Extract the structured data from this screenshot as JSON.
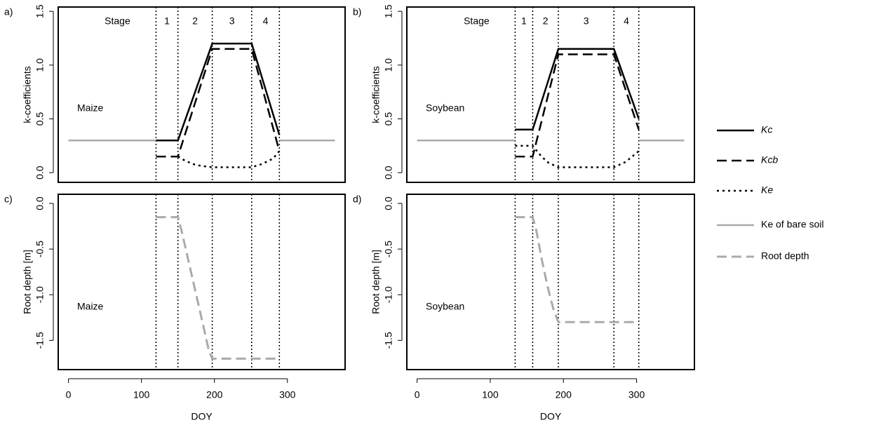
{
  "chart_data": [
    {
      "type": "line",
      "panel": "a)",
      "crop": "Maize",
      "ylabel": "k-coefficients",
      "xlim": [
        -14,
        379
      ],
      "ylim": [
        -0.09,
        1.54
      ],
      "yticks": [
        {
          "value": 0,
          "label": "0.0"
        },
        0.5,
        {
          "value": 1,
          "label": "1.0"
        },
        1.5
      ],
      "stage_bounds": [
        120,
        150,
        197,
        251,
        289
      ],
      "stage_labels": [
        "Stage",
        "1",
        "2",
        "3",
        "4"
      ],
      "series": [
        {
          "name": "Kc",
          "color": "#000000",
          "style": "solid",
          "x": [
            120,
            150,
            197,
            251,
            289
          ],
          "values": [
            0.3,
            0.3,
            1.2,
            1.2,
            0.35
          ]
        },
        {
          "name": "Kcb",
          "color": "#000000",
          "style": "dashed",
          "x": [
            120,
            150,
            197,
            251,
            289
          ],
          "values": [
            0.15,
            0.15,
            1.15,
            1.15,
            0.2
          ]
        },
        {
          "name": "Ke",
          "color": "#000000",
          "style": "dotted",
          "x": [
            150,
            160,
            175,
            197,
            251,
            265,
            280,
            289
          ],
          "values": [
            0.15,
            0.11,
            0.07,
            0.05,
            0.05,
            0.08,
            0.13,
            0.2
          ]
        },
        {
          "name": "Ke of bare soil",
          "color": "#aaaaaa",
          "style": "solid",
          "x": [
            0,
            120,
            null,
            289,
            365
          ],
          "values": [
            0.3,
            0.3,
            null,
            0.3,
            0.3
          ]
        }
      ]
    },
    {
      "type": "line",
      "panel": "b)",
      "crop": "Soybean",
      "ylabel": "k-coefficients",
      "xlim": [
        -14,
        379
      ],
      "ylim": [
        -0.09,
        1.54
      ],
      "yticks": [
        {
          "value": 0,
          "label": "0.0"
        },
        0.5,
        {
          "value": 1,
          "label": "1.0"
        },
        1.5
      ],
      "stage_bounds": [
        134,
        158,
        193,
        269,
        303
      ],
      "stage_labels": [
        "Stage",
        "1",
        "2",
        "3",
        "4"
      ],
      "series": [
        {
          "name": "Kc",
          "color": "#000000",
          "style": "solid",
          "x": [
            134,
            158,
            193,
            269,
            303
          ],
          "values": [
            0.4,
            0.4,
            1.15,
            1.15,
            0.5
          ]
        },
        {
          "name": "Kcb",
          "color": "#000000",
          "style": "dashed",
          "x": [
            134,
            158,
            193,
            269,
            303
          ],
          "values": [
            0.15,
            0.15,
            1.1,
            1.1,
            0.4
          ]
        },
        {
          "name": "Ke",
          "color": "#000000",
          "style": "dotted",
          "x": [
            134,
            158,
            170,
            180,
            193,
            269,
            285,
            303
          ],
          "values": [
            0.25,
            0.25,
            0.15,
            0.09,
            0.05,
            0.05,
            0.1,
            0.2
          ]
        },
        {
          "name": "Ke of bare soil",
          "color": "#aaaaaa",
          "style": "solid",
          "x": [
            0,
            134,
            null,
            303,
            365
          ],
          "values": [
            0.3,
            0.3,
            null,
            0.3,
            0.3
          ]
        }
      ]
    },
    {
      "type": "line",
      "panel": "c)",
      "crop": "Maize",
      "ylabel": "Root depth [m]",
      "xlabel": "DOY",
      "xlim": [
        -14,
        379
      ],
      "ylim": [
        -1.82,
        0.1
      ],
      "xticks": [
        0,
        100,
        200,
        300
      ],
      "yticks": [
        {
          "value": 0,
          "label": "0.0"
        },
        -0.5,
        {
          "value": -1,
          "label": "-1.0"
        },
        -1.5
      ],
      "stage_bounds": [
        120,
        150,
        197,
        251,
        289
      ],
      "series": [
        {
          "name": "Root depth",
          "color": "#aaaaaa",
          "style": "dashed",
          "x": [
            120,
            150,
            155,
            165,
            175,
            185,
            192,
            197,
            289
          ],
          "values": [
            -0.15,
            -0.15,
            -0.3,
            -0.65,
            -1.0,
            -1.35,
            -1.6,
            -1.7,
            -1.7
          ]
        }
      ]
    },
    {
      "type": "line",
      "panel": "d)",
      "crop": "Soybean",
      "ylabel": "Root depth [m]",
      "xlabel": "DOY",
      "xlim": [
        -14,
        379
      ],
      "ylim": [
        -1.82,
        0.1
      ],
      "xticks": [
        0,
        100,
        200,
        300
      ],
      "yticks": [
        {
          "value": 0,
          "label": "0.0"
        },
        -0.5,
        {
          "value": -1,
          "label": "-1.0"
        },
        -1.5
      ],
      "stage_bounds": [
        134,
        158,
        193,
        269,
        303
      ],
      "series": [
        {
          "name": "Root depth",
          "color": "#aaaaaa",
          "style": "dashed",
          "x": [
            134,
            158,
            163,
            170,
            178,
            186,
            193,
            303
          ],
          "values": [
            -0.15,
            -0.15,
            -0.3,
            -0.6,
            -0.9,
            -1.15,
            -1.3,
            -1.3
          ]
        }
      ]
    }
  ]
}
